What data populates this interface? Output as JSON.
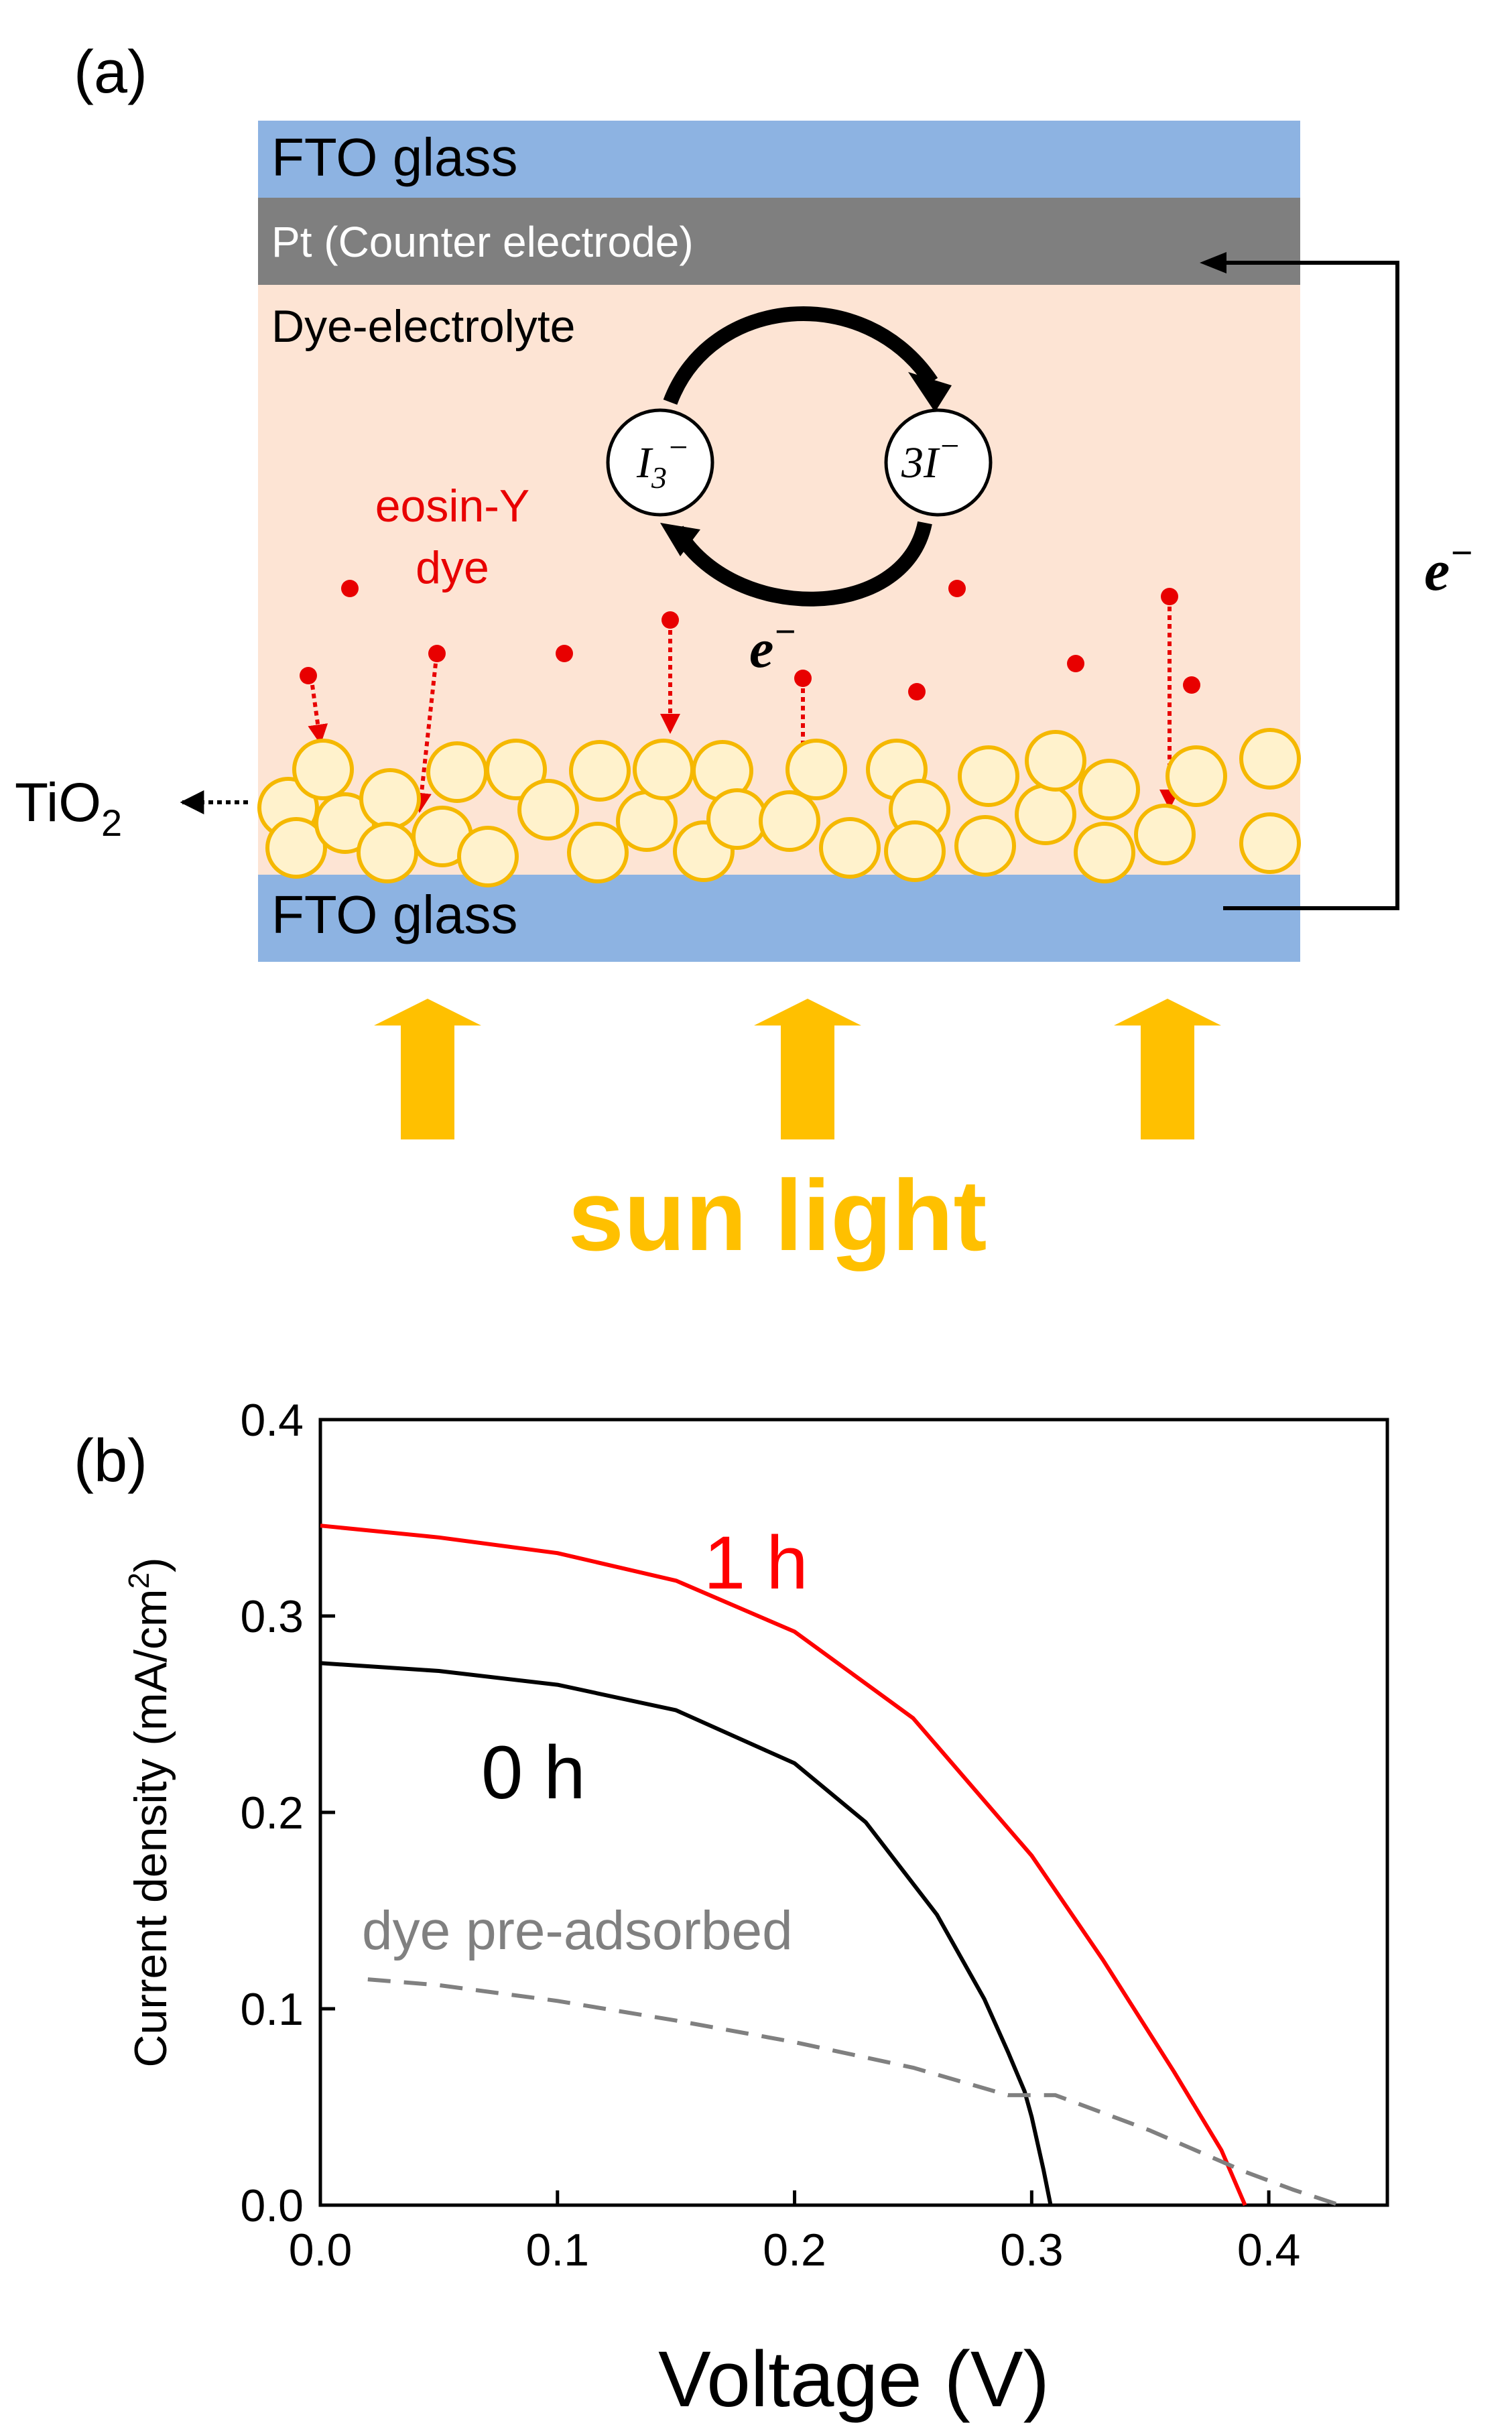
{
  "panel_a": {
    "label": "(a)",
    "top_layer": "FTO glass",
    "counter_electrode": "Pt (Counter electrode)",
    "electrolyte": "Dye-electrolyte",
    "dye_line1": "eosin-Y",
    "dye_line2": "dye",
    "redox_left": {
      "base": "I",
      "sub": "3",
      "sup": "−"
    },
    "redox_right": {
      "base": "3I",
      "sup": "−"
    },
    "electron_inner": {
      "base": "e",
      "sup": "−"
    },
    "electron_outer": {
      "base": "e",
      "sup": "−"
    },
    "tio2": {
      "base": "TiO",
      "sub": "2"
    },
    "bottom_layer": "FTO glass",
    "sunlight": "sun light",
    "colors": {
      "fto": "#8DB3E2",
      "pt": "#7F7F7F",
      "electrolyte": "#FDE4D4",
      "particle_fill": "#FFF2CC",
      "particle_stroke": "#F5B800",
      "dye": "#E80000",
      "sun": "#FFC000"
    }
  },
  "panel_b": {
    "label": "(b)",
    "annotations": {
      "one_hour": "1 h",
      "zero_hour": "0 h",
      "pre_adsorbed": "dye pre-adsorbed"
    }
  },
  "chart_data": {
    "type": "line",
    "title": "",
    "xlabel": "Voltage (V)",
    "ylabel": {
      "base": "Current density (mA/cm",
      "sup": "2",
      "tail": ")"
    },
    "xlim": [
      0.0,
      0.45
    ],
    "ylim": [
      0.0,
      0.4
    ],
    "xticks": [
      "0.0",
      "0.1",
      "0.2",
      "0.3",
      "0.4"
    ],
    "xtick_values": [
      0.0,
      0.1,
      0.2,
      0.3,
      0.4
    ],
    "yticks": [
      "0.0",
      "0.1",
      "0.2",
      "0.3",
      "0.4"
    ],
    "ytick_values": [
      0.0,
      0.1,
      0.2,
      0.3,
      0.4
    ],
    "series": [
      {
        "name": "1 h",
        "color": "#FF0000",
        "style": "solid",
        "x": [
          0.0,
          0.05,
          0.1,
          0.15,
          0.2,
          0.25,
          0.3,
          0.33,
          0.36,
          0.38,
          0.39
        ],
        "y": [
          0.346,
          0.34,
          0.332,
          0.318,
          0.292,
          0.248,
          0.178,
          0.125,
          0.068,
          0.028,
          0.0
        ]
      },
      {
        "name": "0 h",
        "color": "#000000",
        "style": "solid",
        "x": [
          0.0,
          0.05,
          0.1,
          0.15,
          0.2,
          0.23,
          0.26,
          0.28,
          0.29,
          0.297,
          0.3,
          0.305,
          0.308
        ],
        "y": [
          0.276,
          0.272,
          0.265,
          0.252,
          0.225,
          0.195,
          0.148,
          0.105,
          0.078,
          0.058,
          0.045,
          0.018,
          0.0
        ]
      },
      {
        "name": "dye pre-adsorbed",
        "color": "#808080",
        "style": "dashed",
        "x": [
          0.02,
          0.05,
          0.1,
          0.15,
          0.2,
          0.25,
          0.29,
          0.31,
          0.35,
          0.39,
          0.41,
          0.43
        ],
        "y": [
          0.115,
          0.112,
          0.104,
          0.094,
          0.083,
          0.07,
          0.056,
          0.056,
          0.038,
          0.017,
          0.008,
          0.0
        ]
      }
    ]
  }
}
